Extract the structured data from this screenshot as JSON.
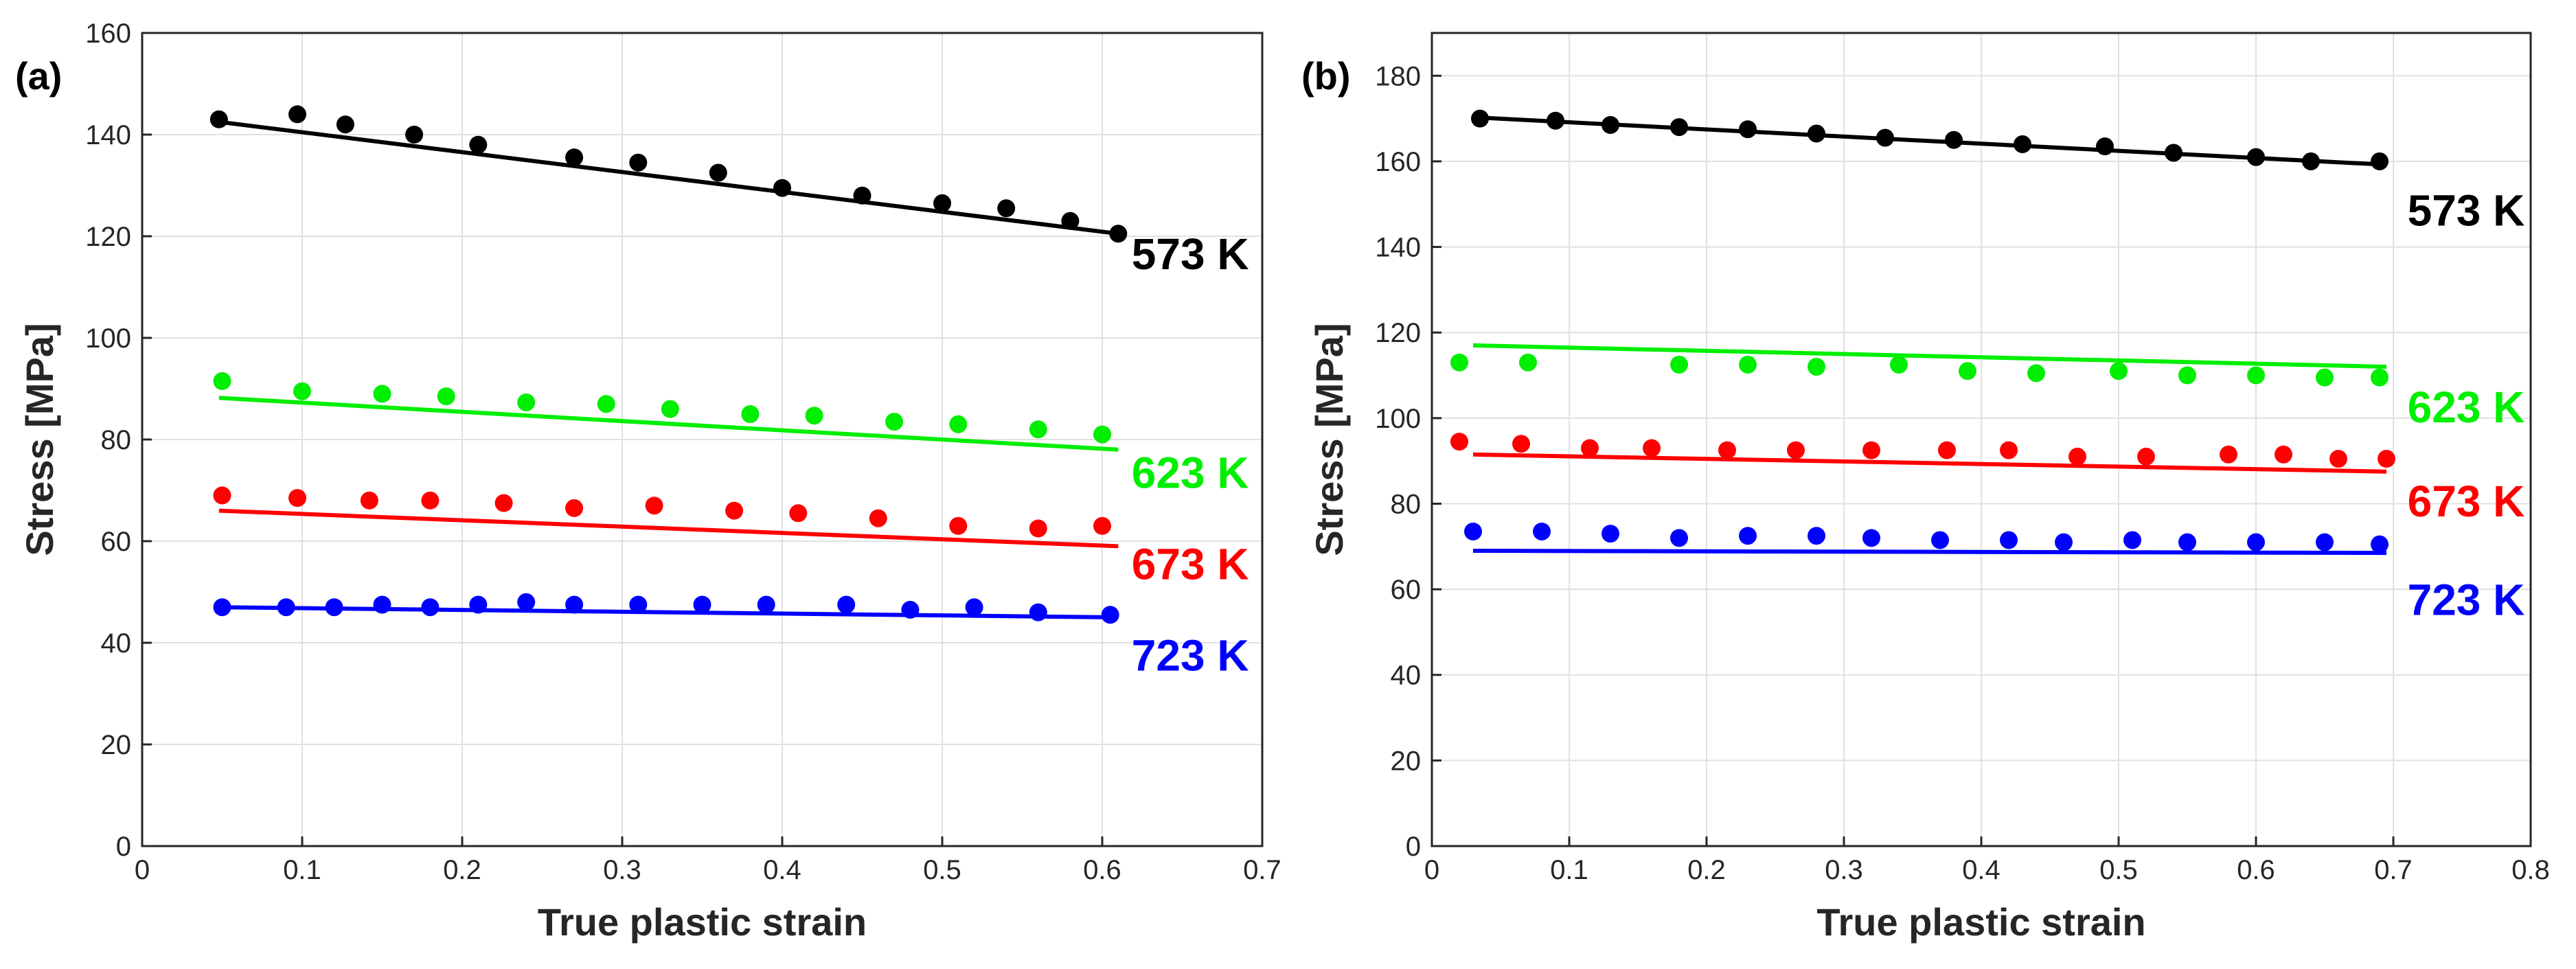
{
  "chart_data": [
    {
      "type": "scatter",
      "panel_label": "(a)",
      "xlabel": "True plastic strain",
      "ylabel": "Stress [MPa]",
      "xlim": [
        0,
        0.7
      ],
      "ylim": [
        0,
        160
      ],
      "xticks": [
        0,
        0.1,
        0.2,
        0.3,
        0.4,
        0.5,
        0.6,
        0.7
      ],
      "yticks": [
        0,
        20,
        40,
        60,
        80,
        100,
        120,
        140,
        160
      ],
      "xtick_labels": [
        "0",
        "0.1",
        "0.2",
        "0.3",
        "0.4",
        "0.5",
        "0.6",
        "0.7"
      ],
      "ytick_labels": [
        "0",
        "20",
        "40",
        "60",
        "80",
        "100",
        "120",
        "140",
        "160"
      ],
      "grid": true,
      "series": [
        {
          "name": "573 K",
          "color": "#000000",
          "x": [
            0.048,
            0.097,
            0.127,
            0.17,
            0.21,
            0.27,
            0.31,
            0.36,
            0.4,
            0.45,
            0.5,
            0.54,
            0.58,
            0.61
          ],
          "y": [
            143,
            144,
            142,
            140,
            138,
            135.5,
            134.5,
            132.5,
            129.5,
            128,
            126.5,
            125.5,
            123,
            120.5
          ],
          "fit": {
            "x": [
              0.048,
              0.61
            ],
            "y": [
              142.5,
              120.5
            ]
          },
          "label_at": {
            "x": 0.655,
            "y": 113.5
          }
        },
        {
          "name": "623 K",
          "color": "#00ee00",
          "x": [
            0.05,
            0.1,
            0.15,
            0.19,
            0.24,
            0.29,
            0.33,
            0.38,
            0.42,
            0.47,
            0.51,
            0.56,
            0.6
          ],
          "y": [
            91.5,
            89.5,
            89,
            88.5,
            87.3,
            87,
            86,
            85,
            84.7,
            83.5,
            83,
            82,
            81
          ],
          "fit": {
            "x": [
              0.048,
              0.61
            ],
            "y": [
              88.2,
              78
            ]
          },
          "label_at": {
            "x": 0.655,
            "y": 70.5
          }
        },
        {
          "name": "673 K",
          "color": "#ff0000",
          "x": [
            0.05,
            0.097,
            0.142,
            0.18,
            0.226,
            0.27,
            0.32,
            0.37,
            0.41,
            0.46,
            0.51,
            0.56,
            0.6
          ],
          "y": [
            69,
            68.5,
            68,
            68,
            67.5,
            66.5,
            67,
            66,
            65.5,
            64.5,
            63,
            62.5,
            63
          ],
          "fit": {
            "x": [
              0.048,
              0.61
            ],
            "y": [
              66,
              59
            ]
          },
          "label_at": {
            "x": 0.655,
            "y": 52.5
          }
        },
        {
          "name": "723 K",
          "color": "#0000ff",
          "x": [
            0.05,
            0.09,
            0.12,
            0.15,
            0.18,
            0.21,
            0.24,
            0.27,
            0.31,
            0.35,
            0.39,
            0.44,
            0.48,
            0.52,
            0.56,
            0.605
          ],
          "y": [
            47,
            47,
            47,
            47.5,
            47,
            47.5,
            48,
            47.5,
            47.5,
            47.5,
            47.5,
            47.5,
            46.5,
            47,
            46,
            45.5
          ],
          "fit": {
            "x": [
              0.048,
              0.61
            ],
            "y": [
              47,
              45
            ]
          },
          "label_at": {
            "x": 0.655,
            "y": 34.5
          }
        }
      ]
    },
    {
      "type": "scatter",
      "panel_label": "(b)",
      "xlabel": "True plastic strain",
      "ylabel": "Stress [MPa]",
      "xlim": [
        0,
        0.8
      ],
      "ylim": [
        0,
        190
      ],
      "xticks": [
        0,
        0.1,
        0.2,
        0.3,
        0.4,
        0.5,
        0.6,
        0.7,
        0.8
      ],
      "yticks": [
        0,
        20,
        40,
        60,
        80,
        100,
        120,
        140,
        160,
        180
      ],
      "xtick_labels": [
        "0",
        "0.1",
        "0.2",
        "0.3",
        "0.4",
        "0.5",
        "0.6",
        "0.7",
        "0.8"
      ],
      "ytick_labels": [
        "0",
        "20",
        "40",
        "60",
        "80",
        "100",
        "120",
        "140",
        "160",
        "180"
      ],
      "grid": true,
      "series": [
        {
          "name": "573 K",
          "color": "#000000",
          "x": [
            0.035,
            0.09,
            0.13,
            0.18,
            0.23,
            0.28,
            0.33,
            0.38,
            0.43,
            0.49,
            0.54,
            0.6,
            0.64,
            0.69
          ],
          "y": [
            170,
            169.5,
            168.5,
            168,
            167.5,
            166.5,
            165.5,
            165,
            164,
            163.5,
            162,
            161,
            160,
            160
          ],
          "fit": {
            "x": [
              0.03,
              0.695
            ],
            "y": [
              170.3,
              159.2
            ]
          },
          "label_at": {
            "x": 0.753,
            "y": 145
          }
        },
        {
          "name": "623 K",
          "color": "#00ee00",
          "x": [
            0.02,
            0.07,
            0.18,
            0.23,
            0.28,
            0.34,
            0.39,
            0.44,
            0.5,
            0.55,
            0.6,
            0.65,
            0.69
          ],
          "y": [
            113,
            113,
            112.5,
            112.5,
            112,
            112.5,
            111,
            110.5,
            111,
            110,
            110,
            109.5,
            109.5
          ],
          "fit": {
            "x": [
              0.03,
              0.695
            ],
            "y": [
              117,
              112
            ]
          },
          "label_at": {
            "x": 0.753,
            "y": 99
          }
        },
        {
          "name": "673 K",
          "color": "#ff0000",
          "x": [
            0.02,
            0.065,
            0.115,
            0.16,
            0.215,
            0.265,
            0.32,
            0.375,
            0.42,
            0.47,
            0.52,
            0.58,
            0.62,
            0.66,
            0.695
          ],
          "y": [
            94.5,
            94,
            93,
            93,
            92.5,
            92.5,
            92.5,
            92.5,
            92.5,
            91,
            91,
            91.5,
            91.5,
            90.5,
            90.5
          ],
          "fit": {
            "x": [
              0.03,
              0.695
            ],
            "y": [
              91.5,
              87.5
            ]
          },
          "label_at": {
            "x": 0.753,
            "y": 77
          }
        },
        {
          "name": "723 K",
          "color": "#0000ff",
          "x": [
            0.03,
            0.08,
            0.13,
            0.18,
            0.23,
            0.28,
            0.32,
            0.37,
            0.42,
            0.46,
            0.51,
            0.55,
            0.6,
            0.65,
            0.69
          ],
          "y": [
            73.5,
            73.5,
            73,
            72,
            72.5,
            72.5,
            72,
            71.5,
            71.5,
            71,
            71.5,
            71,
            71,
            71,
            70.5
          ],
          "fit": {
            "x": [
              0.03,
              0.695
            ],
            "y": [
              69,
              68.5
            ]
          },
          "label_at": {
            "x": 0.753,
            "y": 54
          }
        }
      ]
    }
  ]
}
